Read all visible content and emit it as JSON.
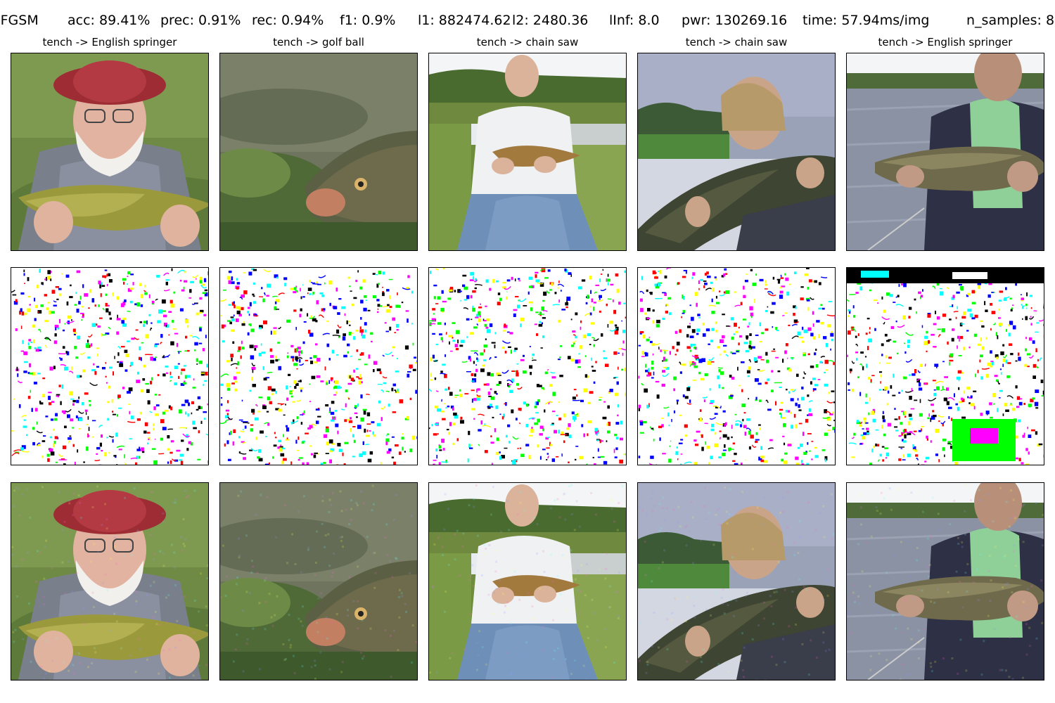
{
  "header": {
    "method": "IFGSM",
    "acc": "acc: 89.41%",
    "prec": "prec: 0.91%",
    "rec": "rec: 0.94%",
    "f1": "f1: 0.9%",
    "l1": "l1: 882474.62",
    "l2": "l2: 2480.36",
    "linf": "lInf: 8.0",
    "pwr": "pwr: 130269.16",
    "time": "time: 57.94ms/img",
    "n_samples": "n_samples: 8"
  },
  "columns": [
    {
      "title": "tench -> English springer",
      "scene": "old-man-hat-fish"
    },
    {
      "title": "tench -> golf ball",
      "scene": "underwater-fish"
    },
    {
      "title": "tench -> chain saw",
      "scene": "man-sitting-fish"
    },
    {
      "title": "tench -> chain saw",
      "scene": "woman-holding-fish"
    },
    {
      "title": "tench -> English springer",
      "scene": "man-lake-fish"
    }
  ],
  "rows": [
    "original",
    "perturbation",
    "adversarial"
  ],
  "noise_colors": [
    "#ff00ff",
    "#00ffff",
    "#ffff00",
    "#0000ff",
    "#ff0000",
    "#00ff00",
    "#000000"
  ]
}
